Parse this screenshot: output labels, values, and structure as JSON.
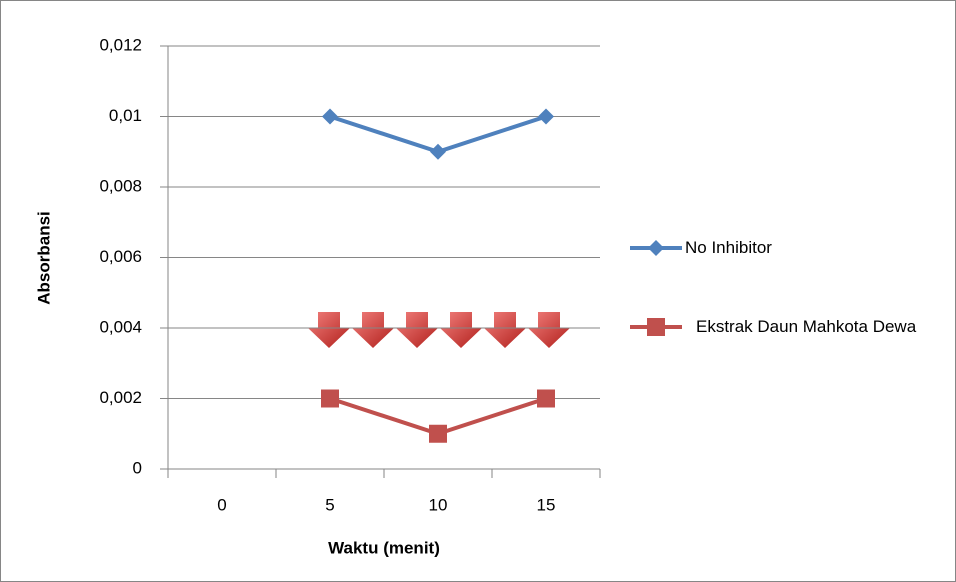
{
  "chart_data": {
    "type": "line",
    "x_label": "Waktu (menit)",
    "y_label": "Absorbansi",
    "categories": [
      "0",
      "5",
      "10",
      "15"
    ],
    "series": [
      {
        "name": "No Inhibitor",
        "color": "#4f81bd",
        "marker": "diamond",
        "values": [
          null,
          0.01,
          0.009,
          0.01
        ]
      },
      {
        "name": "Ekstrak Daun Mahkota Dewa",
        "color": "#c0504d",
        "marker": "square",
        "values": [
          null,
          0.002,
          0.001,
          0.002
        ]
      }
    ],
    "ylim": [
      0,
      0.012
    ],
    "yticks": [
      0,
      {
        "value": 0.002,
        "label": "0,002"
      },
      {
        "value": 0.004,
        "label": "0,004"
      },
      {
        "value": 0.006,
        "label": "0,006"
      },
      {
        "value": 0.008,
        "label": "0,008"
      },
      {
        "value": 0.01,
        "label": "0,01"
      },
      {
        "value": 0.012,
        "label": "0,012"
      }
    ],
    "grid": true,
    "legend": "right"
  }
}
